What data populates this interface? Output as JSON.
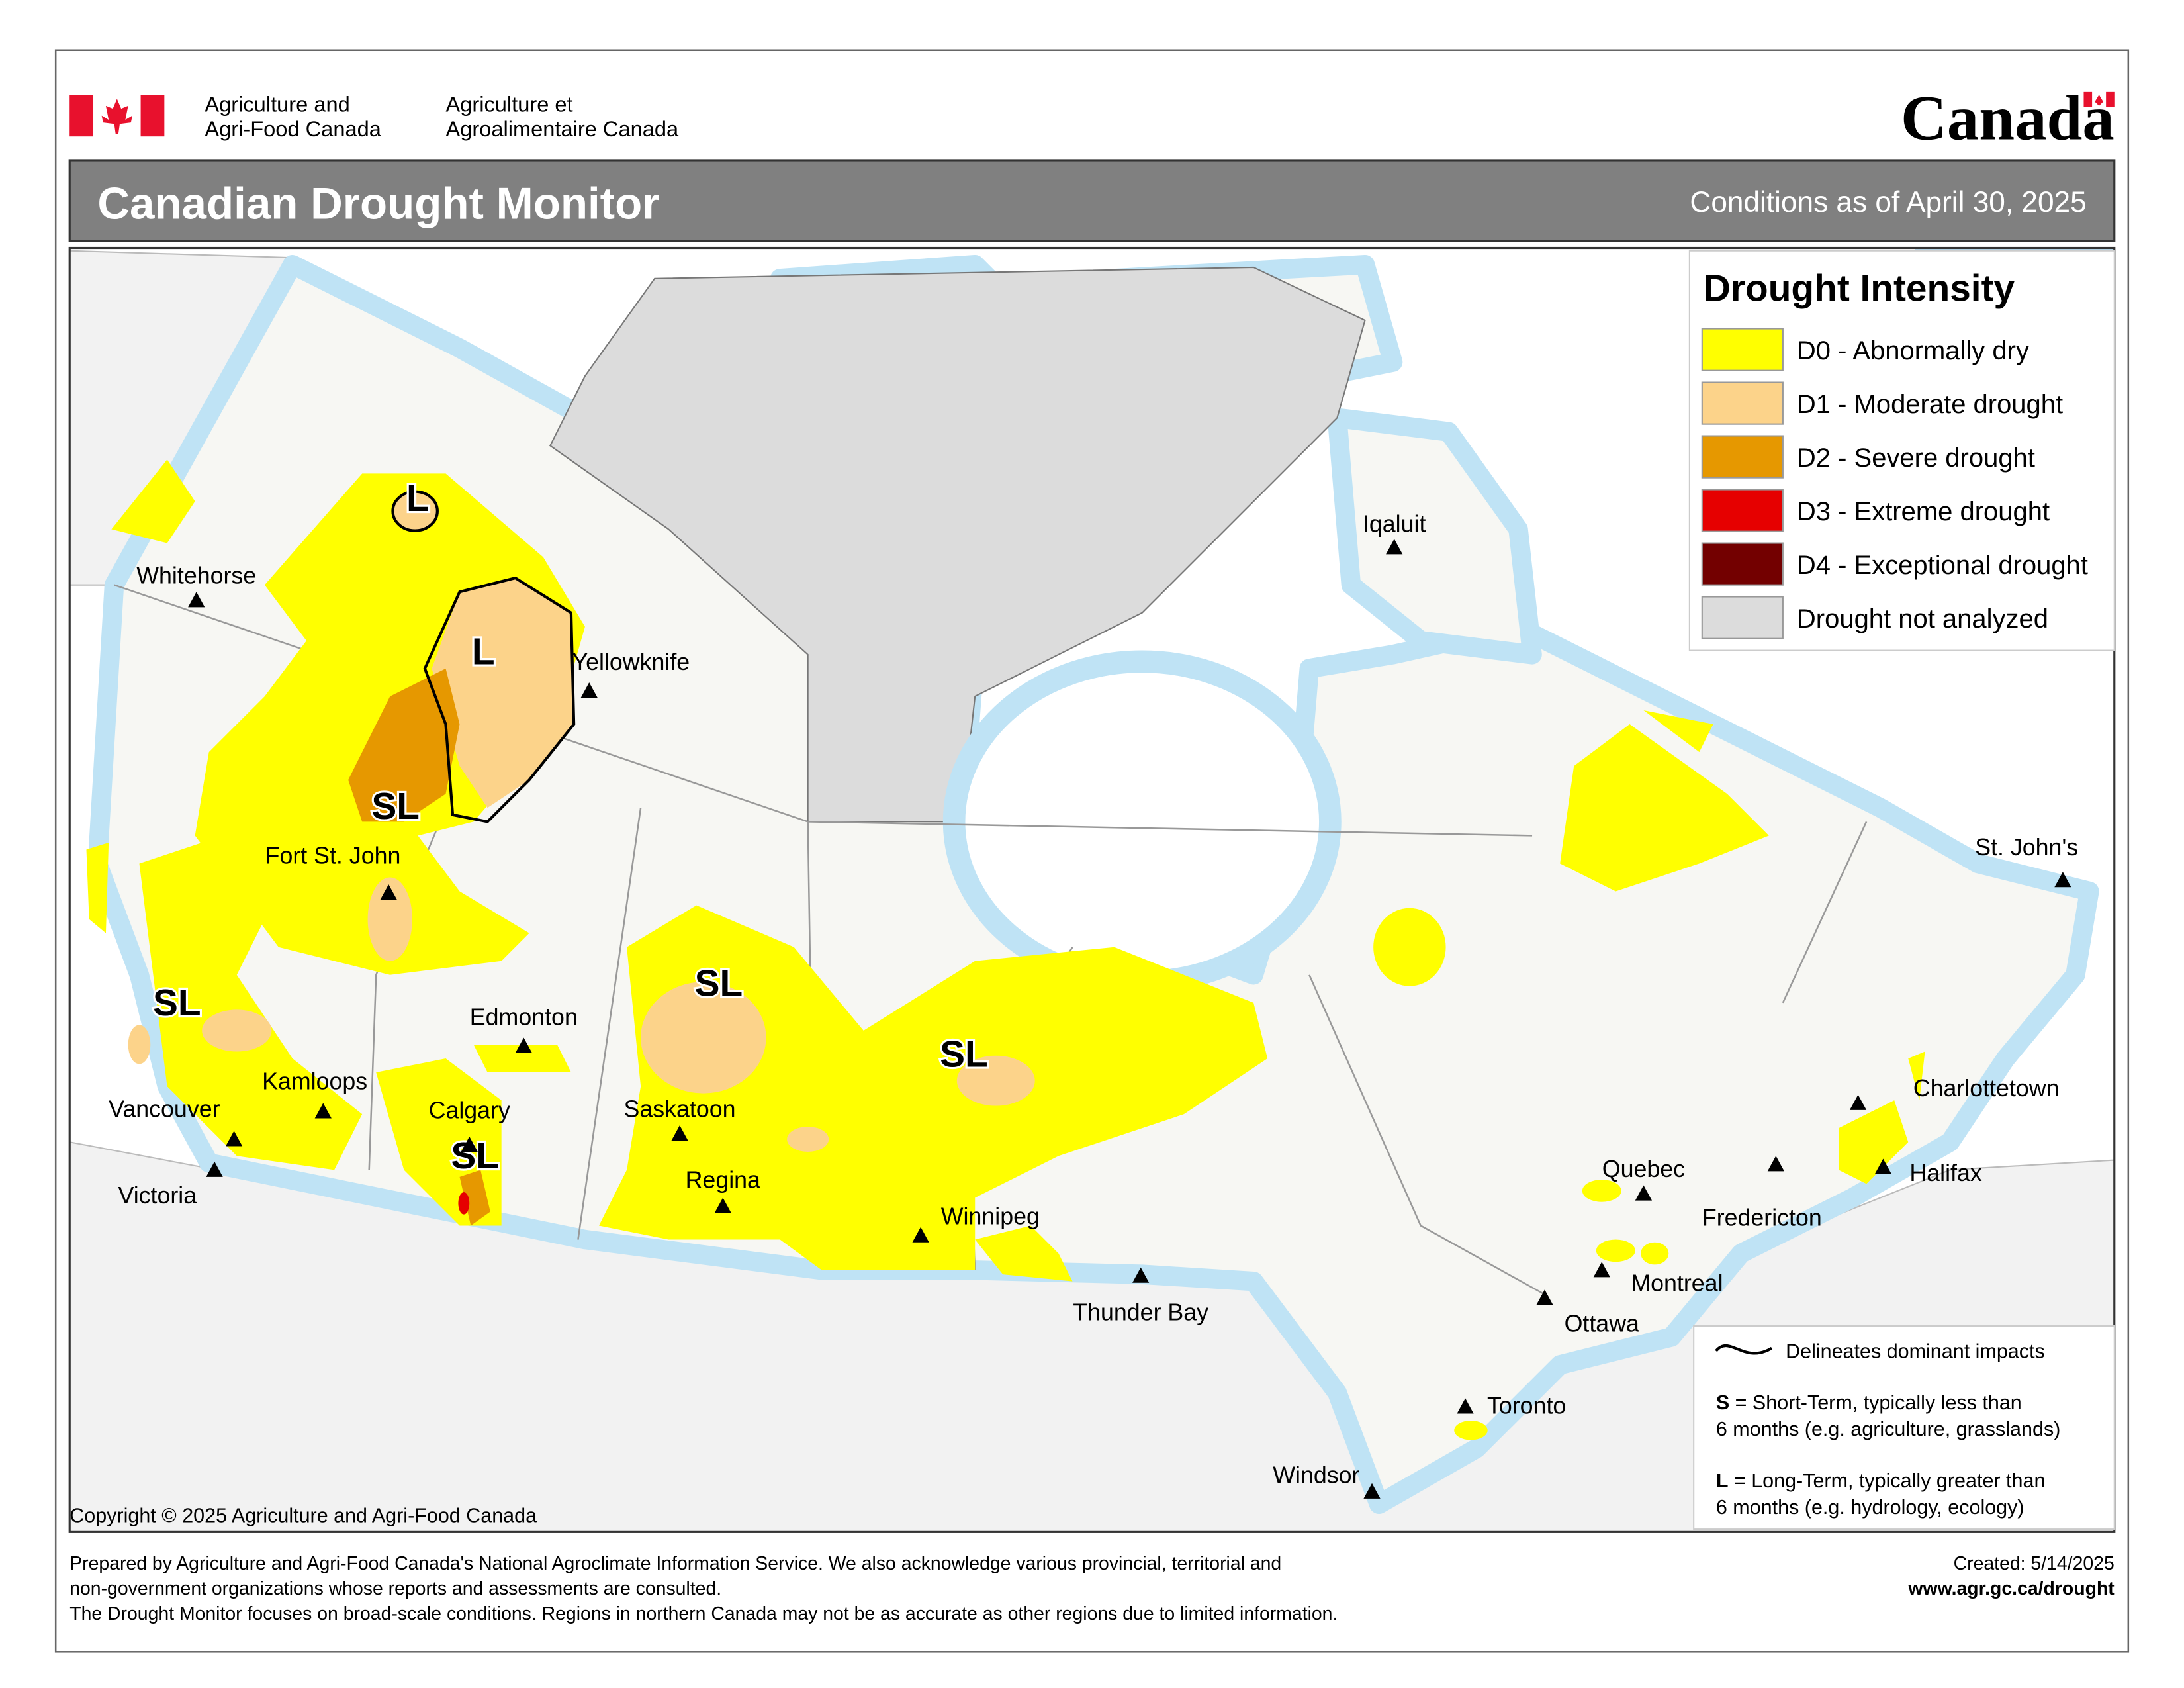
{
  "header": {
    "dept_en": [
      "Agriculture and",
      "Agri-Food Canada"
    ],
    "dept_fr": [
      "Agriculture et",
      "Agroalimentaire Canada"
    ],
    "wordmark": "Canada"
  },
  "title": "Canadian Drought Monitor",
  "date": "Conditions as of April 30, 2025",
  "legend": {
    "title": "Drought Intensity",
    "items": [
      {
        "label": "D0 - Abnormally dry",
        "color": "#ffff00"
      },
      {
        "label": "D1 - Moderate drought",
        "color": "#fcd38a"
      },
      {
        "label": "D2 - Severe drought",
        "color": "#e69800"
      },
      {
        "label": "D3 - Extreme drought",
        "color": "#e60000"
      },
      {
        "label": "D4 - Exceptional drought",
        "color": "#730000"
      },
      {
        "label": "Drought not analyzed",
        "color": "#dcdcdc"
      }
    ]
  },
  "impacts": {
    "line": "Delineates dominant impacts",
    "short_key": "S",
    "short_text": [
      "= Short-Term, typically less than",
      "6 months (e.g. agriculture, grasslands)"
    ],
    "long_key": "L",
    "long_text": [
      "= Long-Term, typically greater  than",
      "6 months (e.g. hydrology, ecology)"
    ]
  },
  "impact_labels": [
    "L",
    "L",
    "SL",
    "SL",
    "SL",
    "SL",
    "SL"
  ],
  "cities": [
    "Whitehorse",
    "Yellowknife",
    "Fort St. John",
    "Edmonton",
    "Kamloops",
    "Vancouver",
    "Victoria",
    "Calgary",
    "Saskatoon",
    "Regina",
    "Winnipeg",
    "Thunder Bay",
    "Ottawa",
    "Montreal",
    "Quebec",
    "Toronto",
    "Windsor",
    "Fredericton",
    "Halifax",
    "Charlottetown",
    "St. John's",
    "Iqaluit"
  ],
  "copyright": "Copyright © 2025 Agriculture and Agri-Food Canada",
  "footer": {
    "notes": [
      "Prepared by Agriculture and Agri-Food Canada's National Agroclimate Information Service.  We also acknowledge various provincial, territorial and",
      "non-government organizations whose reports and assessments are consulted.",
      "The Drought Monitor focuses on broad-scale conditions.  Regions in northern Canada may not be as accurate as other regions due to limited information."
    ],
    "created": "Created: 5/14/2025",
    "url": "www.agr.gc.ca/drought"
  }
}
